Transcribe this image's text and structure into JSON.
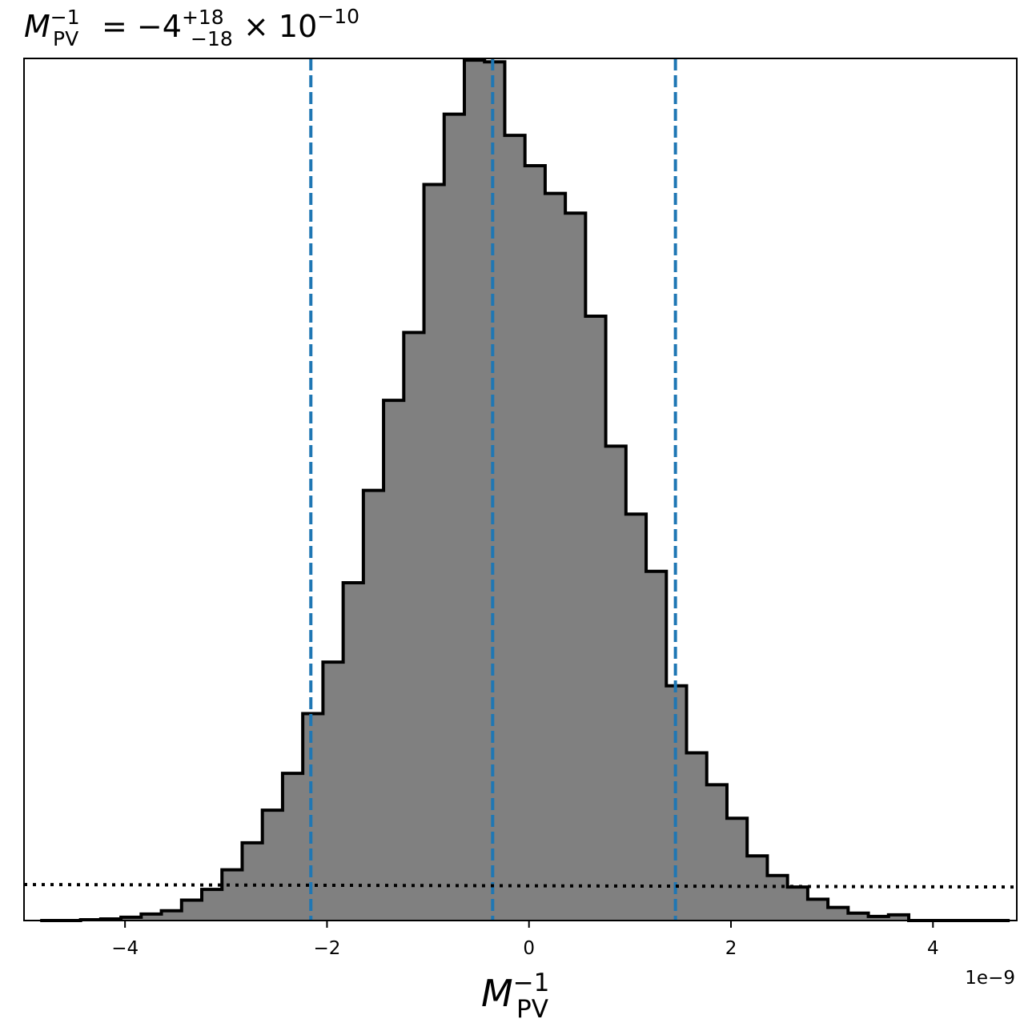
{
  "chart_data": {
    "type": "bar",
    "title": {
      "symbol": "M",
      "symbol_sub": "PV",
      "symbol_sup": "−1",
      "equals": "= −4",
      "err_plus": "+18",
      "err_minus": "−18",
      "times": "× 10",
      "exponent": "−10"
    },
    "xlabel": {
      "symbol": "M",
      "sub": "PV",
      "sup": "−1"
    },
    "offset_text": "1e−9",
    "x_scale": 1e-09,
    "xlim": [
      -5e-09,
      4.83e-09
    ],
    "ylim": [
      0,
      0.10541
    ],
    "x_ticks": [
      {
        "value": -4e-09,
        "label": "−4"
      },
      {
        "value": -2e-09,
        "label": "−2"
      },
      {
        "value": 0,
        "label": "0"
      },
      {
        "value": 2e-09,
        "label": "2"
      },
      {
        "value": 4e-09,
        "label": "4"
      }
    ],
    "bin_edges": [
      -4.84e-09,
      -4.64e-09,
      -4.44e-09,
      -4.24e-09,
      -4.04e-09,
      -3.84e-09,
      -3.64e-09,
      -3.44e-09,
      -3.24e-09,
      -3.04e-09,
      -2.84e-09,
      -2.64e-09,
      -2.44e-09,
      -2.24e-09,
      -2.04e-09,
      -1.84e-09,
      -1.64e-09,
      -1.44e-09,
      -1.24e-09,
      -1.04e-09,
      -8.4e-10,
      -6.4e-10,
      -4.4e-10,
      -2.4e-10,
      -4e-11,
      1.6e-10,
      3.6e-10,
      5.6e-10,
      7.6e-10,
      9.6e-10,
      1.16e-09,
      1.36e-09,
      1.56e-09,
      1.76e-09,
      1.96e-09,
      2.16e-09,
      2.36e-09,
      2.56e-09,
      2.76e-09,
      2.96e-09,
      3.16e-09,
      3.36e-09,
      3.56e-09,
      3.76e-09,
      3.96e-09,
      4.16e-09,
      4.36e-09,
      4.56e-09,
      4.76e-09
    ],
    "counts": [
      0,
      0,
      0.0001,
      0.0002,
      0.0004,
      0.0008,
      0.0012,
      0.0025,
      0.0038,
      0.0062,
      0.0095,
      0.0135,
      0.018,
      0.0253,
      0.0316,
      0.0413,
      0.0526,
      0.0636,
      0.0719,
      0.09,
      0.0986,
      0.1052,
      0.105,
      0.096,
      0.0923,
      0.0889,
      0.0865,
      0.0739,
      0.058,
      0.0497,
      0.0427,
      0.0287,
      0.0205,
      0.0166,
      0.0125,
      0.0079,
      0.0055,
      0.0041,
      0.0026,
      0.0016,
      0.0009,
      0.0005,
      0.0007,
      0,
      0,
      0,
      0,
      0
    ],
    "quantile_lines": [
      -2.16e-09,
      -3.6e-10,
      1.45e-09
    ],
    "reference_line": {
      "y_left": 0.0044,
      "y_right": 0.0041
    },
    "colors": {
      "fill": "#808080",
      "edge": "#000000",
      "quantile": "#1f77b4",
      "reference": "#000000"
    },
    "grid": false,
    "legend": "none"
  }
}
